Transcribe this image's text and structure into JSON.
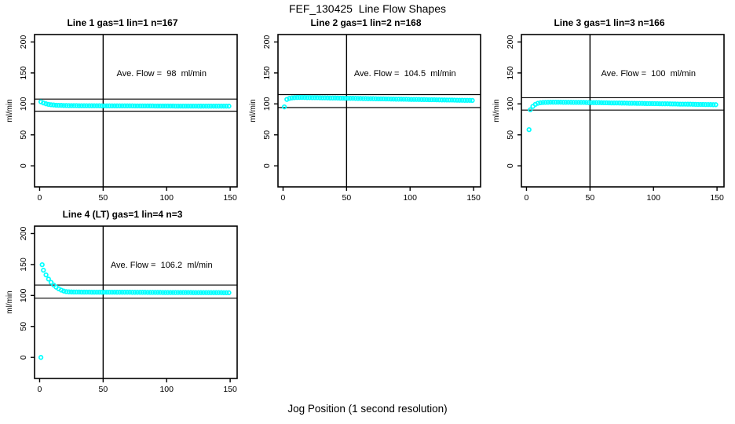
{
  "figure": {
    "title": "FEF_130425  Line Flow Shapes",
    "xlabel": "Jog Position (1 second resolution)",
    "ylabel": "ml/min"
  },
  "colors": {
    "points": "#00ffff",
    "axis": "#000000",
    "background": "#ffffff"
  },
  "chart_data": [
    {
      "type": "scatter",
      "title": "Line 1 gas=1 lin=1 n=167",
      "annotation": "Ave. Flow =  98  ml/min",
      "ave_flow_ml_min": 98,
      "n": 167,
      "vline_x": 50,
      "hlines": [
        107.8,
        88.2
      ],
      "xticks": [
        0,
        50,
        100,
        150
      ],
      "yticks": [
        0,
        50,
        100,
        150,
        200
      ],
      "xlim": [
        -4,
        155.5
      ],
      "ylim": [
        -34,
        212
      ],
      "marker": "open-circle",
      "points": [
        [
          1,
          103.4
        ],
        [
          3,
          101.5
        ],
        [
          5,
          100.2
        ],
        [
          7,
          99.3
        ],
        [
          9,
          98.7
        ],
        [
          11,
          98.2
        ],
        [
          13,
          97.9
        ],
        [
          15,
          97.7
        ],
        [
          17,
          97.6
        ],
        [
          19,
          97.4
        ],
        [
          21,
          97.4
        ],
        [
          23,
          97.3
        ],
        [
          25,
          97.3
        ],
        [
          27,
          97.2
        ],
        [
          29,
          97.2
        ],
        [
          31,
          97.1
        ],
        [
          33,
          97.1
        ],
        [
          35,
          97.1
        ],
        [
          37,
          97.1
        ],
        [
          39,
          97.0
        ],
        [
          41,
          97.0
        ],
        [
          43,
          97.0
        ],
        [
          45,
          97.0
        ],
        [
          47,
          97.0
        ],
        [
          49,
          96.9
        ],
        [
          51,
          96.9
        ],
        [
          53,
          96.9
        ],
        [
          55,
          96.9
        ],
        [
          57,
          96.9
        ],
        [
          59,
          96.9
        ],
        [
          61,
          96.8
        ],
        [
          63,
          96.8
        ],
        [
          65,
          96.8
        ],
        [
          67,
          96.8
        ],
        [
          69,
          96.8
        ],
        [
          71,
          96.8
        ],
        [
          73,
          96.8
        ],
        [
          75,
          96.7
        ],
        [
          77,
          96.7
        ],
        [
          79,
          96.7
        ],
        [
          81,
          96.7
        ],
        [
          83,
          96.7
        ],
        [
          85,
          96.7
        ],
        [
          87,
          96.7
        ],
        [
          89,
          96.7
        ],
        [
          91,
          96.6
        ],
        [
          93,
          96.6
        ],
        [
          95,
          96.6
        ],
        [
          97,
          96.6
        ],
        [
          99,
          96.6
        ],
        [
          101,
          96.6
        ],
        [
          103,
          96.6
        ],
        [
          105,
          96.6
        ],
        [
          107,
          96.5
        ],
        [
          109,
          96.5
        ],
        [
          111,
          96.5
        ],
        [
          113,
          96.5
        ],
        [
          115,
          96.5
        ],
        [
          117,
          96.5
        ],
        [
          119,
          96.5
        ],
        [
          121,
          96.5
        ],
        [
          123,
          96.5
        ],
        [
          125,
          96.4
        ],
        [
          127,
          96.4
        ],
        [
          129,
          96.4
        ],
        [
          131,
          96.4
        ],
        [
          133,
          96.4
        ],
        [
          135,
          96.4
        ],
        [
          137,
          96.4
        ],
        [
          139,
          96.4
        ],
        [
          141,
          96.4
        ],
        [
          143,
          96.3
        ],
        [
          145,
          96.3
        ],
        [
          147,
          96.3
        ],
        [
          149,
          96.3
        ]
      ]
    },
    {
      "type": "scatter",
      "title": "Line 2 gas=1 lin=2 n=168",
      "annotation": "Ave. Flow =  104.5  ml/min",
      "ave_flow_ml_min": 104.5,
      "n": 168,
      "vline_x": 50,
      "hlines": [
        115.0,
        94.1
      ],
      "xticks": [
        0,
        50,
        100,
        150
      ],
      "yticks": [
        0,
        50,
        100,
        150,
        200
      ],
      "xlim": [
        -4,
        155.5
      ],
      "ylim": [
        -34,
        212
      ],
      "marker": "open-circle",
      "points": [
        [
          1,
          95.2
        ],
        [
          3,
          107.2
        ],
        [
          5,
          108.9
        ],
        [
          7,
          109.7
        ],
        [
          9,
          110.1
        ],
        [
          11,
          110.3
        ],
        [
          13,
          110.4
        ],
        [
          15,
          110.4
        ],
        [
          17,
          110.3
        ],
        [
          19,
          110.2
        ],
        [
          21,
          110.2
        ],
        [
          23,
          110.1
        ],
        [
          25,
          110.0
        ],
        [
          27,
          110.0
        ],
        [
          29,
          109.9
        ],
        [
          31,
          109.8
        ],
        [
          33,
          109.8
        ],
        [
          35,
          109.7
        ],
        [
          37,
          109.6
        ],
        [
          39,
          109.5
        ],
        [
          41,
          109.5
        ],
        [
          43,
          109.4
        ],
        [
          45,
          109.3
        ],
        [
          47,
          109.3
        ],
        [
          49,
          109.2
        ],
        [
          51,
          109.1
        ],
        [
          53,
          109.0
        ],
        [
          55,
          109.0
        ],
        [
          57,
          108.9
        ],
        [
          59,
          108.8
        ],
        [
          61,
          108.8
        ],
        [
          63,
          108.7
        ],
        [
          65,
          108.6
        ],
        [
          67,
          108.5
        ],
        [
          69,
          108.5
        ],
        [
          71,
          108.4
        ],
        [
          73,
          108.3
        ],
        [
          75,
          108.2
        ],
        [
          77,
          108.2
        ],
        [
          79,
          108.1
        ],
        [
          81,
          108.0
        ],
        [
          83,
          108.0
        ],
        [
          85,
          107.9
        ],
        [
          87,
          107.8
        ],
        [
          89,
          107.7
        ],
        [
          91,
          107.7
        ],
        [
          93,
          107.6
        ],
        [
          95,
          107.5
        ],
        [
          97,
          107.5
        ],
        [
          99,
          107.4
        ],
        [
          101,
          107.3
        ],
        [
          103,
          107.2
        ],
        [
          105,
          107.2
        ],
        [
          107,
          107.1
        ],
        [
          109,
          107.0
        ],
        [
          111,
          107.0
        ],
        [
          113,
          106.9
        ],
        [
          115,
          106.8
        ],
        [
          117,
          106.7
        ],
        [
          119,
          106.7
        ],
        [
          121,
          106.6
        ],
        [
          123,
          106.5
        ],
        [
          125,
          106.4
        ],
        [
          127,
          106.4
        ],
        [
          129,
          106.3
        ],
        [
          131,
          106.2
        ],
        [
          133,
          106.2
        ],
        [
          135,
          106.1
        ],
        [
          137,
          106.0
        ],
        [
          139,
          105.9
        ],
        [
          141,
          105.9
        ],
        [
          143,
          105.8
        ],
        [
          145,
          105.7
        ],
        [
          147,
          105.7
        ],
        [
          149,
          105.6
        ]
      ]
    },
    {
      "type": "scatter",
      "title": "Line 3 gas=1 lin=3 n=166",
      "annotation": "Ave. Flow =  100  ml/min",
      "ave_flow_ml_min": 100,
      "n": 166,
      "vline_x": 50,
      "hlines": [
        110.0,
        90.0
      ],
      "xticks": [
        0,
        50,
        100,
        150
      ],
      "yticks": [
        0,
        50,
        100,
        150,
        200
      ],
      "xlim": [
        -4,
        155.5
      ],
      "ylim": [
        -34,
        212
      ],
      "marker": "open-circle",
      "points": [
        [
          2,
          58.5
        ],
        [
          3,
          90.5
        ],
        [
          5,
          96.0
        ],
        [
          7,
          99.3
        ],
        [
          9,
          101.0
        ],
        [
          11,
          101.9
        ],
        [
          13,
          102.3
        ],
        [
          15,
          102.5
        ],
        [
          17,
          102.6
        ],
        [
          19,
          102.7
        ],
        [
          21,
          102.7
        ],
        [
          23,
          102.7
        ],
        [
          25,
          102.7
        ],
        [
          27,
          102.7
        ],
        [
          29,
          102.6
        ],
        [
          31,
          102.6
        ],
        [
          33,
          102.6
        ],
        [
          35,
          102.6
        ],
        [
          37,
          102.5
        ],
        [
          39,
          102.5
        ],
        [
          41,
          102.5
        ],
        [
          43,
          102.4
        ],
        [
          45,
          102.4
        ],
        [
          47,
          102.3
        ],
        [
          49,
          102.2
        ],
        [
          51,
          102.2
        ],
        [
          53,
          102.1
        ],
        [
          55,
          102.0
        ],
        [
          57,
          102.0
        ],
        [
          59,
          101.9
        ],
        [
          61,
          101.8
        ],
        [
          63,
          101.8
        ],
        [
          65,
          101.7
        ],
        [
          67,
          101.6
        ],
        [
          69,
          101.6
        ],
        [
          71,
          101.5
        ],
        [
          73,
          101.4
        ],
        [
          75,
          101.3
        ],
        [
          77,
          101.3
        ],
        [
          79,
          101.2
        ],
        [
          81,
          101.1
        ],
        [
          83,
          101.1
        ],
        [
          85,
          101.0
        ],
        [
          87,
          100.9
        ],
        [
          89,
          100.9
        ],
        [
          91,
          100.8
        ],
        [
          93,
          100.7
        ],
        [
          95,
          100.6
        ],
        [
          97,
          100.6
        ],
        [
          99,
          100.5
        ],
        [
          101,
          100.4
        ],
        [
          103,
          100.4
        ],
        [
          105,
          100.3
        ],
        [
          107,
          100.2
        ],
        [
          109,
          100.2
        ],
        [
          111,
          100.1
        ],
        [
          113,
          100.0
        ],
        [
          115,
          99.9
        ],
        [
          117,
          99.9
        ],
        [
          119,
          99.8
        ],
        [
          121,
          99.7
        ],
        [
          123,
          99.7
        ],
        [
          125,
          99.6
        ],
        [
          127,
          99.5
        ],
        [
          129,
          99.5
        ],
        [
          131,
          99.4
        ],
        [
          133,
          99.3
        ],
        [
          135,
          99.2
        ],
        [
          137,
          99.2
        ],
        [
          139,
          99.1
        ],
        [
          141,
          99.0
        ],
        [
          143,
          99.0
        ],
        [
          145,
          98.9
        ],
        [
          147,
          98.8
        ],
        [
          149,
          98.8
        ]
      ]
    },
    {
      "type": "scatter",
      "title": "Line 4 (LT) gas=1 lin=4 n=3",
      "annotation": "Ave. Flow =  106.2  ml/min",
      "ave_flow_ml_min": 106.2,
      "n": 3,
      "vline_x": 50,
      "hlines": [
        116.8,
        95.6
      ],
      "xticks": [
        0,
        50,
        100,
        150
      ],
      "yticks": [
        0,
        50,
        100,
        150,
        200
      ],
      "xlim": [
        -4,
        155.5
      ],
      "ylim": [
        -34,
        212
      ],
      "marker": "open-circle",
      "points": [
        [
          1,
          0
        ],
        [
          2,
          149.8
        ],
        [
          3,
          140.9
        ],
        [
          5,
          133.2
        ],
        [
          7,
          126.5
        ],
        [
          9,
          121.2
        ],
        [
          11,
          116.9
        ],
        [
          13,
          113.5
        ],
        [
          15,
          110.8
        ],
        [
          17,
          108.7
        ],
        [
          19,
          107.1
        ],
        [
          21,
          106.3
        ],
        [
          23,
          105.9
        ],
        [
          25,
          105.7
        ],
        [
          27,
          105.6
        ],
        [
          29,
          105.6
        ],
        [
          31,
          105.6
        ],
        [
          33,
          105.5
        ],
        [
          35,
          105.5
        ],
        [
          37,
          105.5
        ],
        [
          39,
          105.5
        ],
        [
          41,
          105.4
        ],
        [
          43,
          105.4
        ],
        [
          45,
          105.4
        ],
        [
          47,
          105.4
        ],
        [
          49,
          105.4
        ],
        [
          51,
          105.3
        ],
        [
          53,
          105.3
        ],
        [
          55,
          105.3
        ],
        [
          57,
          105.3
        ],
        [
          59,
          105.3
        ],
        [
          61,
          105.2
        ],
        [
          63,
          105.2
        ],
        [
          65,
          105.2
        ],
        [
          67,
          105.2
        ],
        [
          69,
          105.2
        ],
        [
          71,
          105.2
        ],
        [
          73,
          105.1
        ],
        [
          75,
          105.1
        ],
        [
          77,
          105.1
        ],
        [
          79,
          105.1
        ],
        [
          81,
          105.1
        ],
        [
          83,
          105.1
        ],
        [
          85,
          105.0
        ],
        [
          87,
          105.0
        ],
        [
          89,
          105.0
        ],
        [
          91,
          105.0
        ],
        [
          93,
          105.0
        ],
        [
          95,
          105.0
        ],
        [
          97,
          104.9
        ],
        [
          99,
          104.9
        ],
        [
          101,
          104.9
        ],
        [
          103,
          104.9
        ],
        [
          105,
          104.9
        ],
        [
          107,
          104.9
        ],
        [
          109,
          104.8
        ],
        [
          111,
          104.8
        ],
        [
          113,
          104.8
        ],
        [
          115,
          104.8
        ],
        [
          117,
          104.8
        ],
        [
          119,
          104.8
        ],
        [
          121,
          104.7
        ],
        [
          123,
          104.7
        ],
        [
          125,
          104.7
        ],
        [
          127,
          104.7
        ],
        [
          129,
          104.7
        ],
        [
          131,
          104.7
        ],
        [
          133,
          104.6
        ],
        [
          135,
          104.6
        ],
        [
          137,
          104.6
        ],
        [
          139,
          104.6
        ],
        [
          141,
          104.6
        ],
        [
          143,
          104.6
        ],
        [
          145,
          104.5
        ],
        [
          147,
          104.5
        ],
        [
          149,
          104.5
        ]
      ]
    }
  ]
}
